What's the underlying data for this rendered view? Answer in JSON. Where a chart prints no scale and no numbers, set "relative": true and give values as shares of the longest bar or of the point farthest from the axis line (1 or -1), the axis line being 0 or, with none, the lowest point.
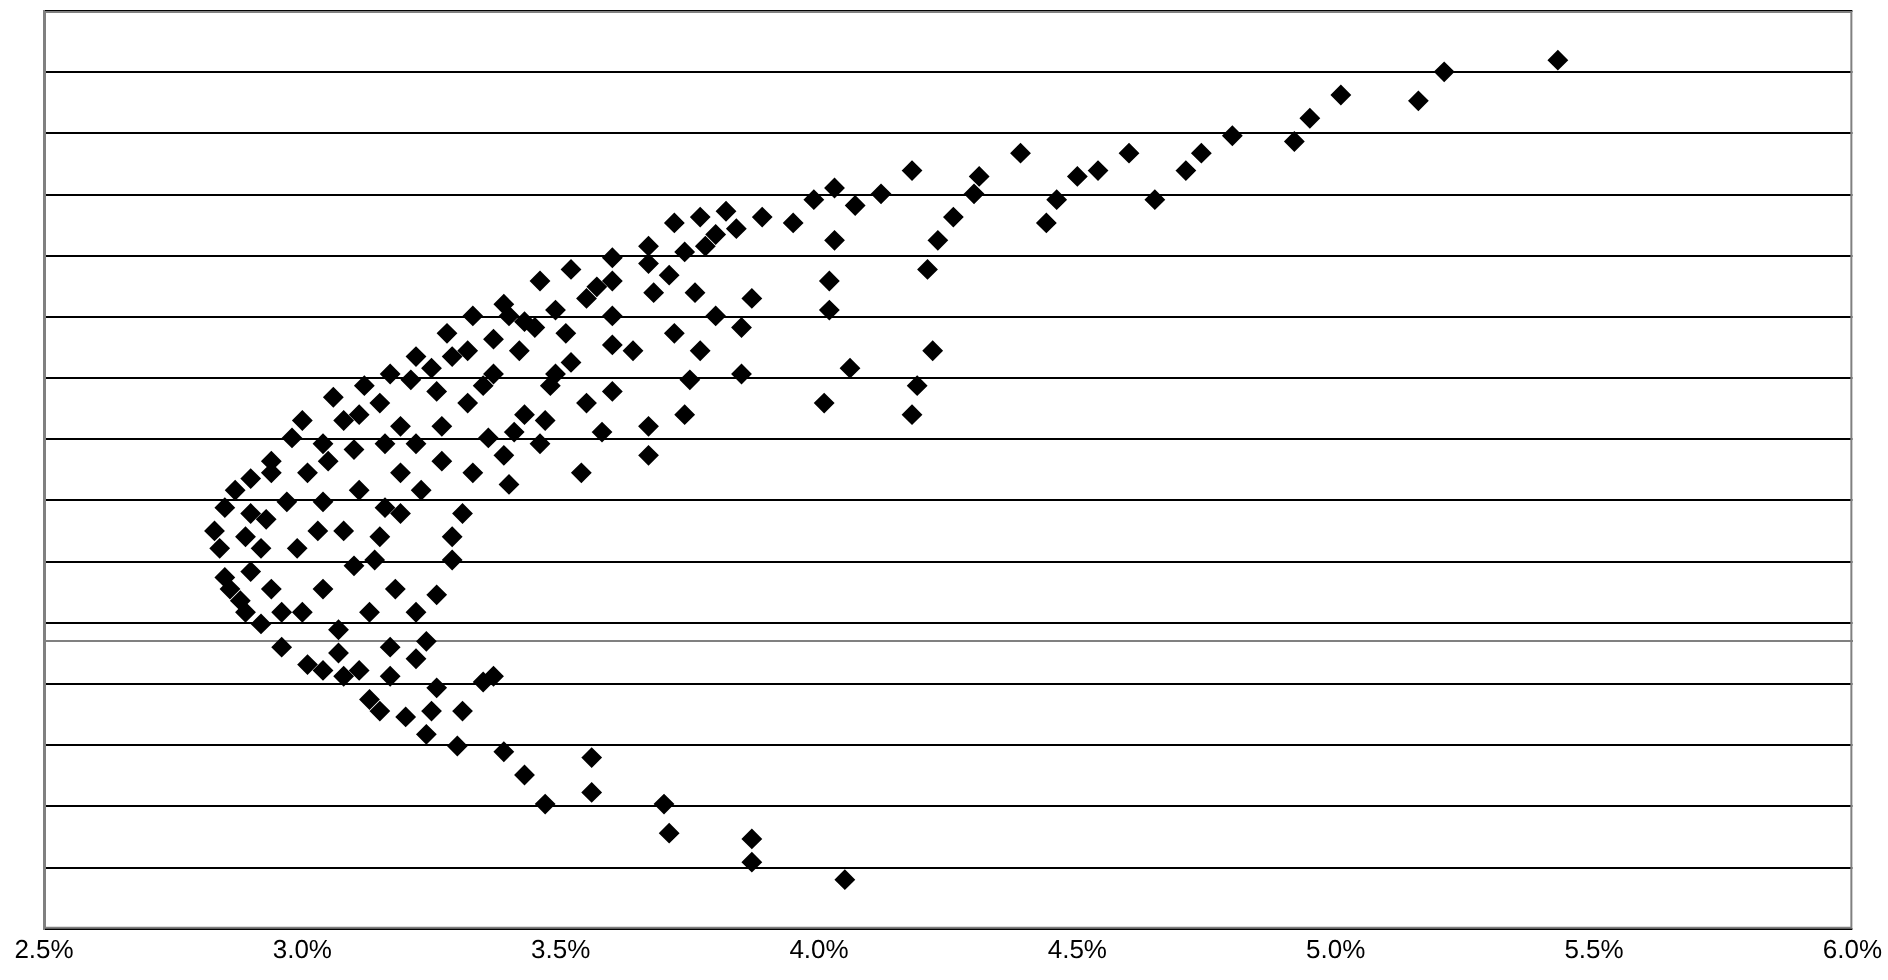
{
  "chart_data": {
    "type": "scatter",
    "relative": true,
    "marker": "diamond",
    "grid": "y",
    "legend": false,
    "xlim": [
      2.5,
      6.0
    ],
    "xticks": [
      {
        "value": 2.5,
        "label": "2.5%"
      },
      {
        "value": 3.0,
        "label": "3.0%"
      },
      {
        "value": 3.5,
        "label": "3.5%"
      },
      {
        "value": 4.0,
        "label": "4.0%"
      },
      {
        "value": 4.5,
        "label": "4.5%"
      },
      {
        "value": 5.0,
        "label": "5.0%"
      },
      {
        "value": 5.5,
        "label": "5.5%"
      },
      {
        "value": 6.0,
        "label": "6.0%"
      }
    ],
    "series": [
      {
        "color": "#000000",
        "x": [
          5.43,
          5.21,
          5.16,
          5.01,
          4.95,
          4.92,
          4.8,
          4.74,
          4.71,
          4.65,
          4.6,
          4.54,
          4.5,
          4.46,
          4.44,
          4.39,
          4.31,
          4.3,
          4.26,
          4.23,
          4.21,
          4.18,
          4.12,
          4.07,
          4.03,
          3.99,
          3.95,
          3.89,
          3.84,
          3.8,
          3.78,
          3.74,
          3.67,
          3.6,
          3.57,
          3.49,
          3.43,
          3.4,
          3.37,
          3.32,
          3.29,
          3.25,
          3.21,
          3.15,
          3.11,
          3.08,
          3.04,
          2.98,
          2.94,
          2.9,
          2.87,
          2.85,
          2.83,
          2.84,
          2.85,
          2.88,
          2.92,
          2.96,
          3.01,
          3.04,
          3.08,
          3.13,
          3.15,
          3.2,
          3.24,
          3.3,
          3.39,
          3.43,
          3.47,
          3.56,
          3.56,
          3.7,
          3.71,
          3.87,
          3.87,
          4.05,
          3.26,
          3.25,
          3.31,
          3.37,
          3.22,
          3.17,
          3.35,
          4.22,
          4.19,
          4.18,
          4.03,
          4.02,
          4.02,
          4.01,
          4.06,
          3.87,
          3.85,
          3.85,
          3.75,
          3.77,
          3.64,
          3.6,
          3.55,
          3.52,
          3.48,
          3.46,
          3.43,
          3.4,
          3.39,
          3.33,
          3.31,
          3.29,
          3.29,
          3.26,
          3.18,
          3.13,
          3.1,
          3.08,
          3.11,
          3.16,
          3.19,
          3.22,
          3.27,
          3.32,
          3.35,
          3.37,
          3.42,
          3.45,
          3.51,
          3.55,
          3.6,
          3.68,
          3.71,
          3.76,
          3.8,
          3.72,
          3.74,
          3.67,
          3.67,
          3.58,
          3.54,
          3.47,
          3.41,
          3.36,
          3.27,
          3.23,
          3.19,
          3.15,
          3.14,
          3.04,
          3.03,
          3.04,
          3.0,
          2.94,
          2.92,
          2.93,
          2.97,
          3.01,
          3.05,
          3.1,
          3.16,
          3.19,
          3.26,
          2.99,
          2.96,
          3.07,
          3.22,
          3.24,
          2.9,
          2.89,
          2.9,
          2.86,
          2.89,
          2.94,
          3.0,
          3.06,
          3.12,
          3.17,
          3.22,
          3.28,
          3.33,
          3.39,
          3.46,
          3.52,
          3.6,
          3.67,
          3.72,
          3.77,
          3.82,
          3.49,
          3.6,
          3.07,
          3.11,
          3.17
        ],
        "values": [
          1.0,
          0.98,
          0.93,
          0.94,
          0.9,
          0.86,
          0.87,
          0.84,
          0.81,
          0.76,
          0.84,
          0.81,
          0.8,
          0.76,
          0.72,
          0.84,
          0.8,
          0.77,
          0.73,
          0.69,
          0.64,
          0.81,
          0.77,
          0.75,
          0.78,
          0.76,
          0.72,
          0.73,
          0.71,
          0.7,
          0.68,
          0.67,
          0.65,
          0.62,
          0.61,
          0.57,
          0.55,
          0.56,
          0.52,
          0.5,
          0.49,
          0.47,
          0.45,
          0.41,
          0.39,
          0.38,
          0.34,
          0.35,
          0.31,
          0.28,
          0.26,
          0.23,
          0.19,
          0.16,
          0.11,
          0.07,
          0.03,
          -0.01,
          -0.04,
          -0.05,
          -0.06,
          -0.1,
          -0.12,
          -0.13,
          -0.16,
          -0.18,
          -0.19,
          -0.23,
          -0.28,
          -0.2,
          -0.26,
          -0.28,
          -0.33,
          -0.34,
          -0.38,
          -0.41,
          -0.08,
          -0.12,
          -0.12,
          -0.06,
          -0.03,
          -0.01,
          -0.07,
          0.5,
          0.44,
          0.39,
          0.69,
          0.62,
          0.57,
          0.41,
          0.47,
          0.59,
          0.54,
          0.46,
          0.45,
          0.5,
          0.5,
          0.43,
          0.41,
          0.48,
          0.44,
          0.34,
          0.39,
          0.27,
          0.32,
          0.29,
          0.22,
          0.18,
          0.14,
          0.08,
          0.09,
          0.05,
          0.13,
          0.19,
          0.26,
          0.23,
          0.29,
          0.34,
          0.37,
          0.41,
          0.44,
          0.46,
          0.5,
          0.54,
          0.53,
          0.59,
          0.56,
          0.6,
          0.63,
          0.6,
          0.56,
          0.53,
          0.39,
          0.37,
          0.32,
          0.36,
          0.29,
          0.38,
          0.36,
          0.35,
          0.31,
          0.26,
          0.22,
          0.18,
          0.14,
          0.24,
          0.19,
          0.09,
          0.05,
          0.09,
          0.16,
          0.21,
          0.24,
          0.29,
          0.31,
          0.33,
          0.34,
          0.37,
          0.43,
          0.16,
          0.05,
          0.02,
          0.05,
          0.0,
          0.12,
          0.18,
          0.22,
          0.09,
          0.05,
          0.29,
          0.38,
          0.42,
          0.44,
          0.46,
          0.49,
          0.53,
          0.56,
          0.58,
          0.62,
          0.64,
          0.66,
          0.68,
          0.72,
          0.73,
          0.74,
          0.46,
          0.51,
          -0.02,
          -0.05,
          -0.06
        ]
      }
    ]
  }
}
